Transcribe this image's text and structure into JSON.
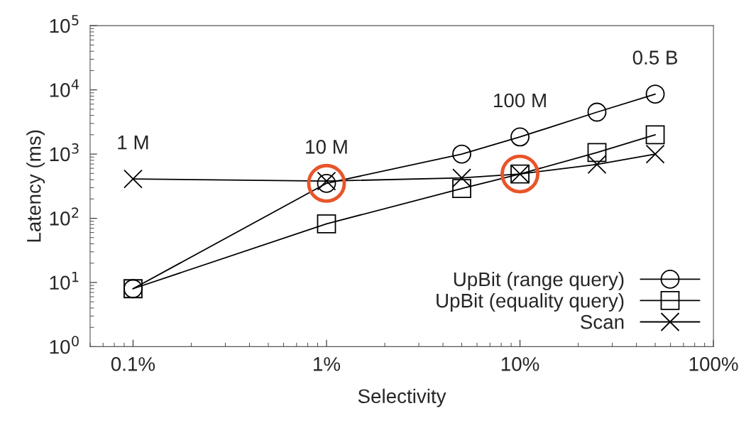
{
  "chart_data": {
    "type": "line",
    "xlabel": "Selectivity",
    "ylabel": "Latency (ms)",
    "log": "xy",
    "x": [
      0.1,
      1,
      5,
      10,
      25,
      50
    ],
    "series": [
      {
        "name": "UpBit (range query)",
        "color": "#000000",
        "marker": "circle",
        "values": [
          8,
          350,
          1000,
          1850,
          4500,
          8600
        ]
      },
      {
        "name": "UpBit (equality query)",
        "color": "#000000",
        "marker": "square",
        "values": [
          8,
          82,
          290,
          490,
          1060,
          2000
        ]
      },
      {
        "name": "Scan",
        "color": "#000000",
        "marker": "cross",
        "values": [
          410,
          380,
          425,
          490,
          690,
          1000
        ]
      },
      {
        "type": "scatter",
        "color": "#e8552a",
        "marker": "circle",
        "x": [
          1,
          10
        ],
        "values": [
          350,
          490
        ]
      }
    ],
    "xlim": [
      0.06,
      100
    ],
    "xticks": [
      {
        "value": 0.1,
        "label": "0.1%"
      },
      {
        "value": 1,
        "label": "1%"
      },
      {
        "value": 10,
        "label": "10%"
      },
      {
        "value": 100,
        "label": "100%"
      }
    ],
    "ylim": [
      1,
      100000
    ],
    "yticks": [
      {
        "value": 1,
        "label": "10$^{0}$"
      },
      {
        "value": 10,
        "label": "10$^{1}$"
      },
      {
        "value": 100,
        "label": "10$^{2}$"
      },
      {
        "value": 1000,
        "label": "10$^{3}$"
      },
      {
        "value": 10000,
        "label": "10$^{4}$"
      },
      {
        "value": 100000,
        "label": "10$^{5}$"
      }
    ],
    "annotations": [
      {
        "text": "1 M",
        "x": 0.1,
        "y": 410
      },
      {
        "text": "10 M",
        "x": 1,
        "y": 350
      },
      {
        "text": "100 M",
        "x": 10,
        "y": 1850
      },
      {
        "text": "0.5 B",
        "x": 50,
        "y": 8600
      }
    ],
    "legend": "bottom right",
    "grid": false
  }
}
